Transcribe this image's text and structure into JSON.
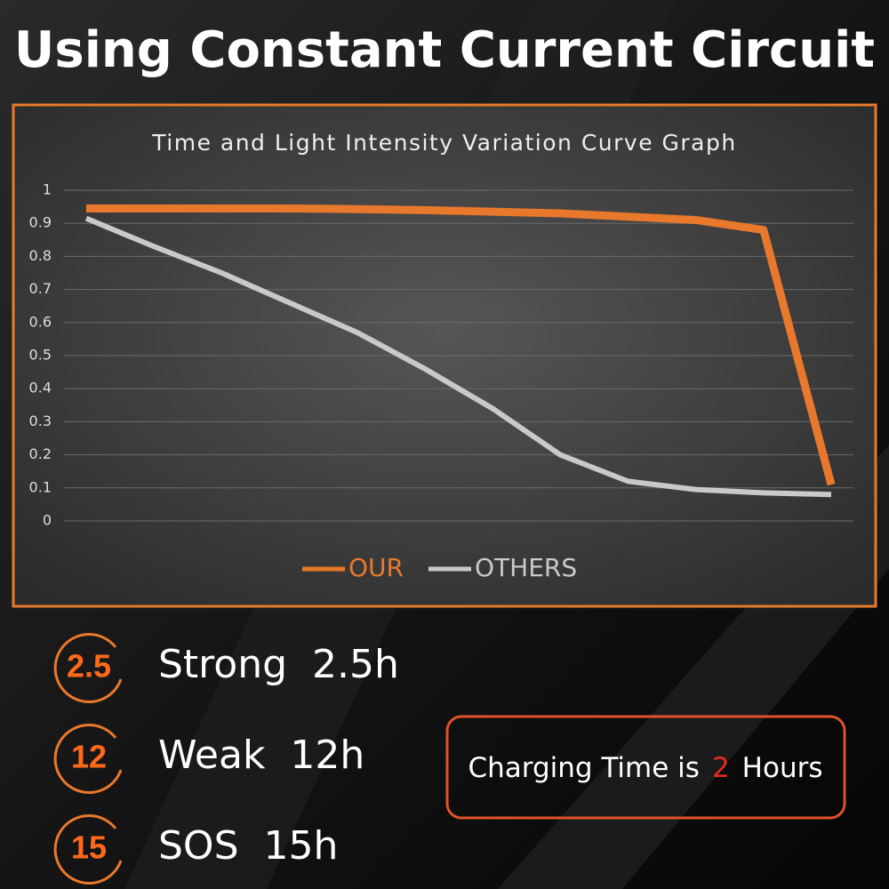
{
  "header": {
    "title": "Using Constant Current Circuit"
  },
  "chart_data": {
    "type": "line",
    "title": "Time and Light Intensity Variation Curve Graph",
    "categories": [
      null,
      null,
      null,
      null,
      null,
      null,
      null,
      null,
      null,
      null,
      null,
      null
    ],
    "series": [
      {
        "name": "OUR",
        "color": "#e8792c",
        "values": [
          0.945,
          0.945,
          0.945,
          0.945,
          0.943,
          0.94,
          0.935,
          0.93,
          0.92,
          0.91,
          0.88,
          0.11
        ]
      },
      {
        "name": "OTHERS",
        "color": "#c9c9c9",
        "values": [
          0.915,
          0.83,
          0.75,
          0.66,
          0.57,
          0.46,
          0.34,
          0.2,
          0.12,
          0.095,
          0.085,
          0.08
        ]
      }
    ],
    "ylim": [
      0,
      1
    ],
    "yticks": [
      0,
      0.1,
      0.2,
      0.3,
      0.4,
      0.5,
      0.6,
      0.7,
      0.8,
      0.9,
      1
    ],
    "grid": true,
    "legend": "bottom"
  },
  "features": [
    {
      "badge": "2.5",
      "label": "Strong  2.5h"
    },
    {
      "badge": "12",
      "label": "Weak  12h"
    },
    {
      "badge": "15",
      "label": "SOS  15h"
    }
  ],
  "charging": {
    "before": "Charging Time is",
    "highlight": "2",
    "after": "Hours"
  }
}
